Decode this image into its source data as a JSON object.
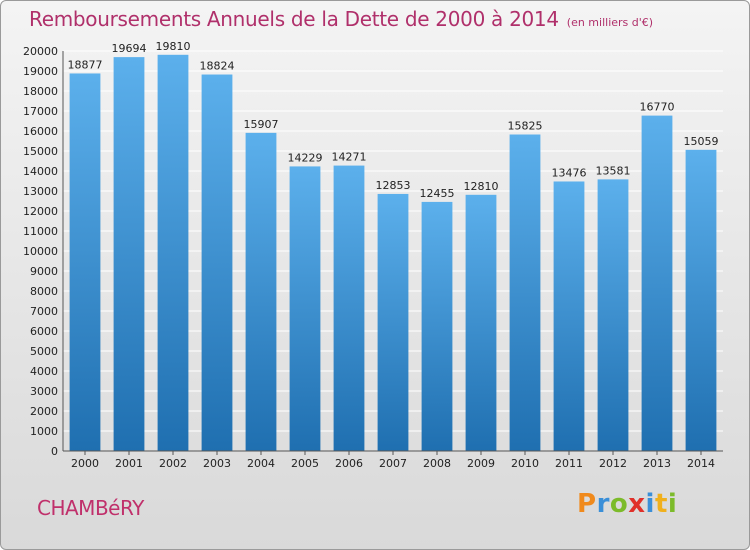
{
  "title": "Remboursements Annuels de la Dette de 2000 à 2014",
  "subtitle": "(en milliers d'€)",
  "city": "CHAMBéRY",
  "logo": {
    "text": "Proxiti",
    "letters": [
      {
        "ch": "P",
        "color": "#f08a1c"
      },
      {
        "ch": "r",
        "color": "#3a8fd8"
      },
      {
        "ch": "o",
        "color": "#7cbb2a"
      },
      {
        "ch": "x",
        "color": "#e0302a"
      },
      {
        "ch": "i",
        "color": "#3a8fd8"
      },
      {
        "ch": "t",
        "color": "#f0b01c"
      },
      {
        "ch": "i",
        "color": "#7cbb2a"
      }
    ]
  },
  "colors": {
    "title": "#b0306b",
    "bar_top": "#5cb0ec",
    "bar_bottom": "#1f6fb0",
    "grid": "#ffffff"
  },
  "chart_data": {
    "type": "bar",
    "title": "Remboursements Annuels de la Dette de 2000 à 2014",
    "subtitle": "(en milliers d'€)",
    "categories": [
      "2000",
      "2001",
      "2002",
      "2003",
      "2004",
      "2005",
      "2006",
      "2007",
      "2008",
      "2009",
      "2010",
      "2011",
      "2012",
      "2013",
      "2014"
    ],
    "values": [
      18877,
      19694,
      19810,
      18824,
      15907,
      14229,
      14271,
      12853,
      12455,
      12810,
      15825,
      13476,
      13581,
      16770,
      15059
    ],
    "ylim": [
      0,
      20000
    ],
    "ytick_step": 1000,
    "grid": true,
    "xlabel": "",
    "ylabel": ""
  }
}
